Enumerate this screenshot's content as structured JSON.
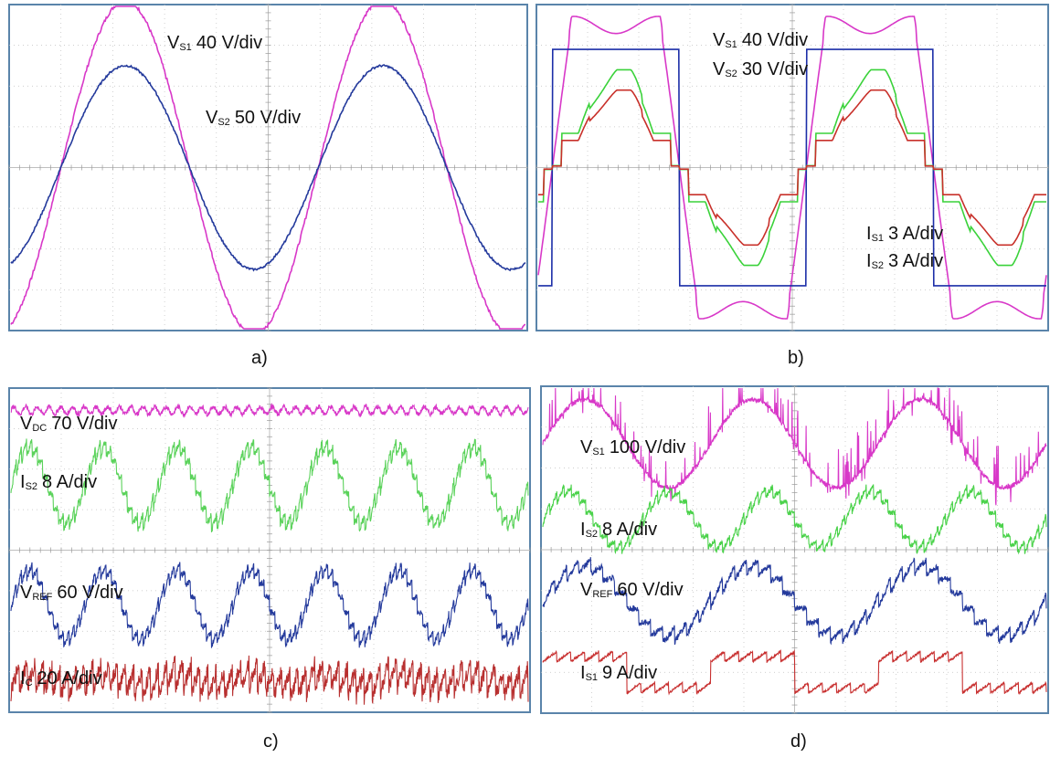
{
  "chart_data": [
    {
      "type": "line",
      "caption": "a)",
      "color_background": "#ffffff",
      "color_frame": "#5a84aa",
      "series": [
        {
          "name": "V",
          "sub": "S1",
          "unit": "40 V/div",
          "color": "#d838c8",
          "shape": "sine",
          "cycles": 2,
          "amplitude_div": 4.1,
          "phase_deg": 0
        },
        {
          "name": "V",
          "sub": "S2",
          "unit": "50 V/div",
          "color": "#243a9c",
          "shape": "sine",
          "cycles": 2,
          "amplitude_div": 2.5,
          "phase_deg": 0
        }
      ]
    },
    {
      "type": "line",
      "caption": "b)",
      "color_background": "#ffffff",
      "color_frame": "#5a84aa",
      "series": [
        {
          "name": "V",
          "sub": "S1",
          "unit": "40 V/div",
          "color": "#d838c8",
          "shape": "trapezoid",
          "cycles": 2,
          "amplitude_div": 3.5
        },
        {
          "name": "V",
          "sub": "S2",
          "unit": "30 V/div",
          "color": "#1c2ea8",
          "shape": "square",
          "cycles": 2,
          "amplitude_div": 2.9
        },
        {
          "name": "I",
          "sub": "S1",
          "unit": "3 A/div",
          "color": "#c8302a",
          "shape": "stepped",
          "cycles": 2,
          "amplitude_div": 1.9
        },
        {
          "name": "I",
          "sub": "S2",
          "unit": "3 A/div",
          "color": "#3ad23a",
          "shape": "stepped",
          "cycles": 2,
          "amplitude_div": 2.4
        }
      ]
    },
    {
      "type": "line",
      "caption": "c)",
      "color_background": "#ffffff",
      "color_frame": "#5a84aa",
      "series": [
        {
          "name": "V",
          "sub": "DC",
          "unit": "70 V/div",
          "color": "#d838c8",
          "shape": "dc-ripple",
          "cycles": 7,
          "amplitude_div": 0.15
        },
        {
          "name": "I",
          "sub": "S2",
          "unit": "8 A/div",
          "color": "#5ad25a",
          "shape": "sine-ripple",
          "cycles": 7,
          "amplitude_div": 1.1
        },
        {
          "name": "V",
          "sub": "REF",
          "unit": "60 V/div",
          "color": "#243a9c",
          "shape": "sine-ripple",
          "cycles": 7,
          "amplitude_div": 1.0
        },
        {
          "name": "I",
          "sub": "C",
          "unit": "20 A/div",
          "color": "#b83030",
          "shape": "noise",
          "cycles": 7,
          "amplitude_div": 0.5
        }
      ]
    },
    {
      "type": "line",
      "caption": "d)",
      "color_background": "#ffffff",
      "color_frame": "#5a84aa",
      "series": [
        {
          "name": "V",
          "sub": "S1",
          "unit": "100 V/div",
          "color": "#d838c8",
          "shape": "pwm-sine",
          "cycles": 3,
          "amplitude_div": 1.2
        },
        {
          "name": "I",
          "sub": "S2",
          "unit": "8 A/div",
          "color": "#4ad24a",
          "shape": "sine-ripple",
          "cycles": 5,
          "amplitude_div": 0.8
        },
        {
          "name": "V",
          "sub": "REF",
          "unit": "60 V/div",
          "color": "#243a9c",
          "shape": "sine-ripple",
          "cycles": 3,
          "amplitude_div": 1.0
        },
        {
          "name": "I",
          "sub": "S1",
          "unit": "9 A/div",
          "color": "#c83030",
          "shape": "square-ripple",
          "cycles": 3,
          "amplitude_div": 0.55
        }
      ]
    }
  ]
}
